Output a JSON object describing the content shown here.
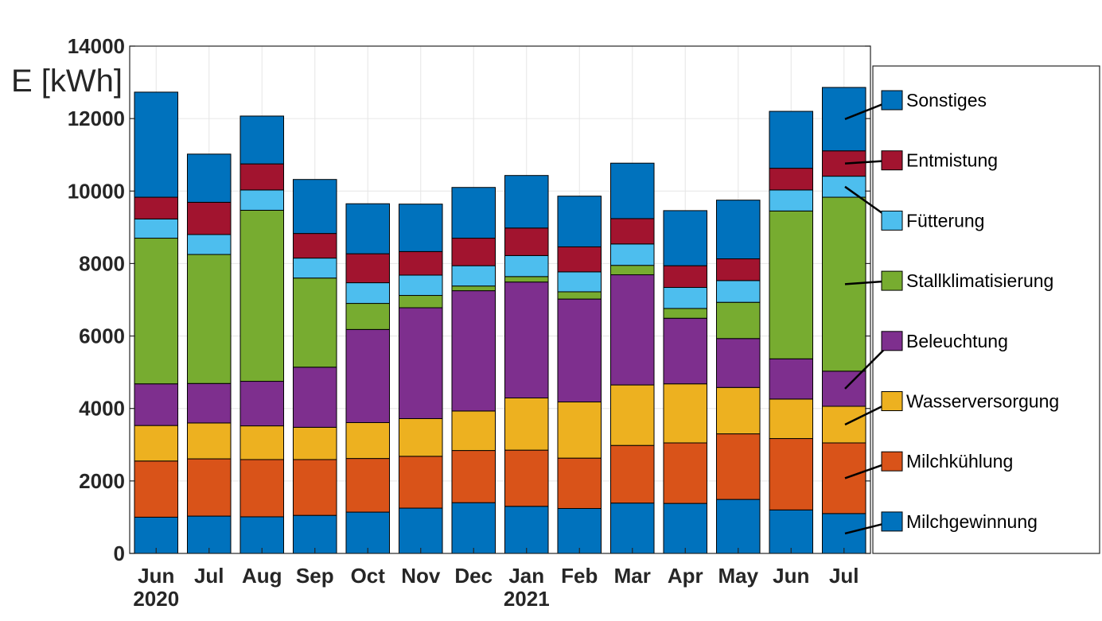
{
  "chart_data": {
    "type": "bar",
    "stacked": true,
    "categories": [
      "Jun",
      "Jul",
      "Aug",
      "Sep",
      "Oct",
      "Nov",
      "Dec",
      "Jan",
      "Feb",
      "Mar",
      "Apr",
      "May",
      "Jun",
      "Jul"
    ],
    "year_labels": [
      {
        "category_index": 0,
        "text": "2020"
      },
      {
        "category_index": 7,
        "text": "2021"
      }
    ],
    "ylabel": "E [kWh]",
    "ylim": [
      0,
      14000
    ],
    "yticks": [
      0,
      2000,
      4000,
      6000,
      8000,
      10000,
      12000,
      14000
    ],
    "grid": true,
    "legend_position": "right",
    "series": [
      {
        "name": "Milchgewinnung",
        "color": "#0072BD",
        "values": [
          1000,
          1030,
          1010,
          1050,
          1140,
          1250,
          1400,
          1300,
          1240,
          1390,
          1380,
          1490,
          1200,
          1100
        ]
      },
      {
        "name": "Milchkühlung",
        "color": "#D95319",
        "values": [
          1550,
          1580,
          1580,
          1540,
          1480,
          1430,
          1440,
          1550,
          1390,
          1590,
          1670,
          1810,
          1970,
          1950
        ]
      },
      {
        "name": "Wasserversorgung",
        "color": "#EDB120",
        "values": [
          980,
          990,
          930,
          890,
          990,
          1040,
          1090,
          1440,
          1550,
          1670,
          1630,
          1280,
          1090,
          1010
        ]
      },
      {
        "name": "Beleuchtung",
        "color": "#7E2F8E",
        "values": [
          1150,
          1090,
          1230,
          1660,
          2570,
          3060,
          3320,
          3200,
          2840,
          3040,
          1810,
          1350,
          1110,
          970
        ]
      },
      {
        "name": "Stallklimatisierung",
        "color": "#77AC30",
        "values": [
          4020,
          3560,
          4720,
          2460,
          720,
          340,
          130,
          150,
          200,
          260,
          270,
          1000,
          4080,
          4800
        ]
      },
      {
        "name": "Fütterung",
        "color": "#4DBEEE",
        "values": [
          530,
          550,
          560,
          550,
          570,
          560,
          560,
          580,
          550,
          590,
          580,
          600,
          580,
          580
        ]
      },
      {
        "name": "Entmistung",
        "color": "#A2142F",
        "values": [
          600,
          890,
          720,
          680,
          800,
          650,
          760,
          760,
          690,
          700,
          600,
          600,
          600,
          700
        ]
      },
      {
        "name": "Sonstiges",
        "color": "#0072BD",
        "values": [
          2900,
          1330,
          1320,
          1490,
          1380,
          1310,
          1400,
          1450,
          1400,
          1530,
          1520,
          1620,
          1570,
          1750
        ]
      }
    ]
  }
}
